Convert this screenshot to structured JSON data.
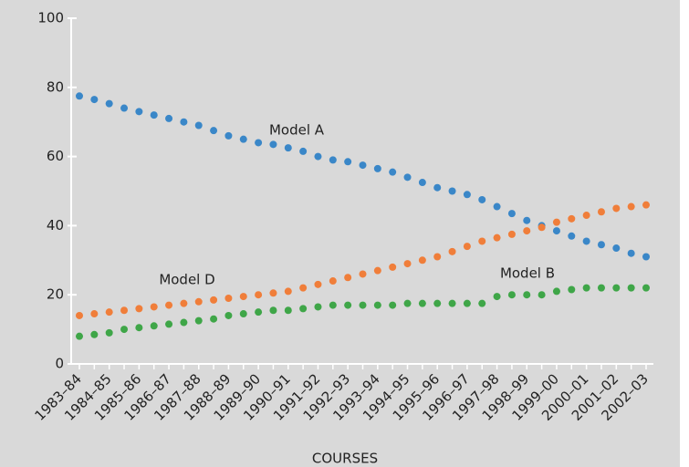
{
  "chart_data": {
    "type": "scatter",
    "x_label": "COURSES",
    "categories": [
      "1983–84",
      null,
      "1984–85",
      null,
      "1985–86",
      null,
      "1986–87",
      null,
      "1987–88",
      null,
      "1988–89",
      null,
      "1989–90",
      null,
      "1990–91",
      null,
      "1991–92",
      null,
      "1992–93",
      null,
      "1993–94",
      null,
      "1994–95",
      null,
      "1995–96",
      null,
      "1996–97",
      null,
      "1997–98",
      null,
      "1998–99",
      null,
      "1999–00",
      null,
      "2000–01",
      null,
      "2001–02",
      null,
      "2002–03"
    ],
    "series": [
      {
        "name": "Model A",
        "color": "#3a87c8",
        "values": [
          77.5,
          76.5,
          75.3,
          74,
          73,
          72,
          71,
          70,
          69,
          67.5,
          66,
          65,
          64,
          63.5,
          62.5,
          61.5,
          60,
          59,
          58.5,
          57.5,
          56.5,
          55.5,
          54,
          52.5,
          51,
          50,
          49,
          47.5,
          45.5,
          43.5,
          41.5,
          40,
          38.5,
          37,
          35.5,
          34.5,
          33.5,
          32,
          31
        ]
      },
      {
        "name": "Model D",
        "color": "#f07e3a",
        "values": [
          14,
          14.5,
          15,
          15.5,
          16,
          16.5,
          17,
          17.5,
          18,
          18.5,
          19,
          19.5,
          20,
          20.5,
          21,
          22,
          23,
          24,
          25,
          26,
          27,
          28,
          29,
          30,
          31,
          32.5,
          34,
          35.5,
          36.5,
          37.5,
          38.5,
          39.5,
          41,
          42,
          43,
          44,
          45,
          45.5,
          46
        ]
      },
      {
        "name": "Model B",
        "color": "#3fa648",
        "values": [
          8,
          8.5,
          9,
          10,
          10.5,
          11,
          11.5,
          12,
          12.5,
          13,
          14,
          14.5,
          15,
          15.5,
          15.5,
          16,
          16.5,
          17,
          17,
          17,
          17,
          17,
          17.5,
          17.5,
          17.5,
          17.5,
          17.5,
          17.5,
          19.5,
          20,
          20,
          20,
          21,
          21.5,
          22,
          22,
          22,
          22,
          22
        ]
      }
    ],
    "ylim": [
      0,
      100
    ],
    "yticks": [
      0,
      20,
      40,
      60,
      80,
      100
    ],
    "grid": false
  }
}
